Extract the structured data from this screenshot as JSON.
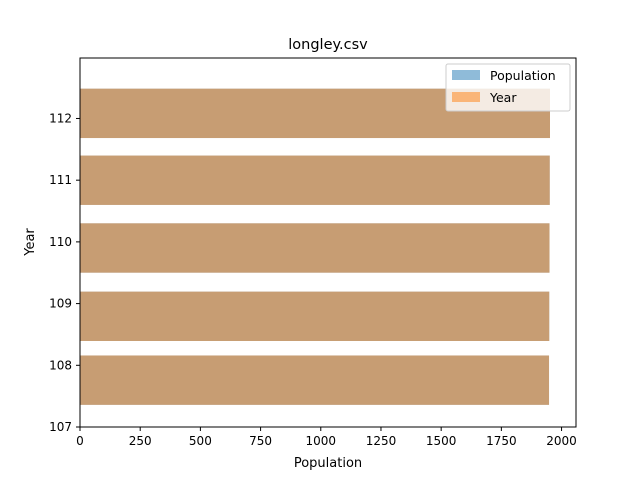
{
  "chart_data": {
    "type": "bar",
    "orientation": "horizontal",
    "title": "longley.csv",
    "xlabel": "Population",
    "ylabel": "Year",
    "xlim": [
      0,
      2060
    ],
    "ylim": [
      107.0,
      112.98
    ],
    "x_ticks": [
      0,
      250,
      500,
      750,
      1000,
      1250,
      1500,
      1750,
      2000
    ],
    "y_ticks": [
      107,
      108,
      109,
      110,
      111,
      112
    ],
    "grid": false,
    "legend_position": "top-right",
    "series": [
      {
        "name": "Population",
        "color": "#1f77b4",
        "opacity": 0.5,
        "bars": [
          {
            "y": 107.759,
            "value": 1948
          },
          {
            "y": 108.794,
            "value": 1949
          },
          {
            "y": 109.901,
            "value": 1950
          },
          {
            "y": 110.999,
            "value": 1951
          },
          {
            "y": 112.083,
            "value": 1952
          }
        ]
      },
      {
        "name": "Year",
        "color": "#ff7f0e",
        "opacity": 0.5,
        "bars": [
          {
            "y": 107.759,
            "value": 1948
          },
          {
            "y": 108.794,
            "value": 1949
          },
          {
            "y": 109.901,
            "value": 1950
          },
          {
            "y": 110.999,
            "value": 1951
          },
          {
            "y": 112.083,
            "value": 1952
          }
        ]
      }
    ],
    "bar_height": 0.8
  }
}
